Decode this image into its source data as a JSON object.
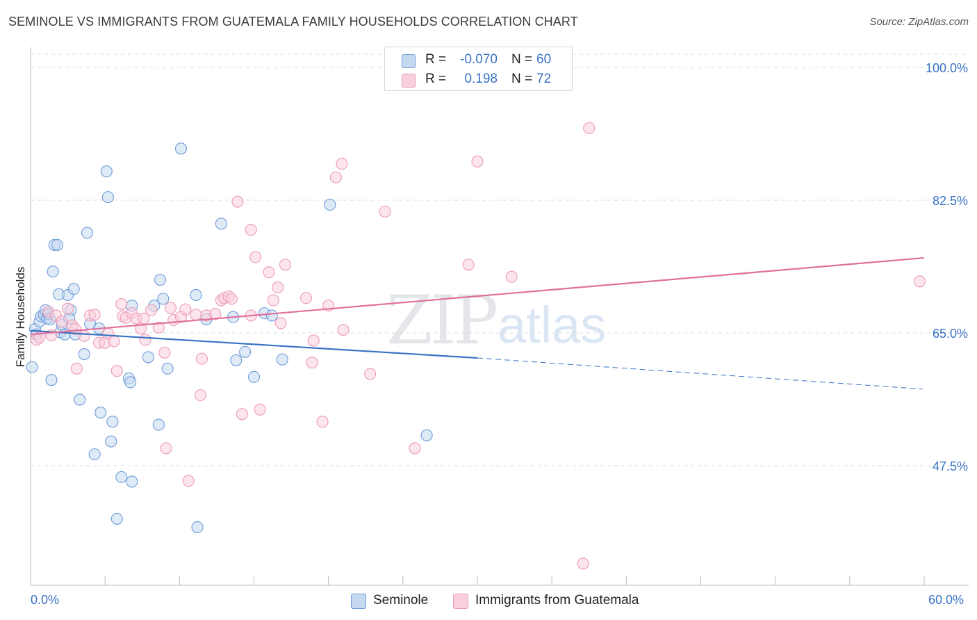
{
  "title": "SEMINOLE VS IMMIGRANTS FROM GUATEMALA FAMILY HOUSEHOLDS CORRELATION CHART",
  "source": "Source: ZipAtlas.com",
  "watermark": {
    "zip": "ZIP",
    "atlas": "atlas"
  },
  "colors": {
    "blue": "#3a72c4",
    "blue_fill": "#c5d9f1",
    "blue_stroke": "#6e9bd9",
    "pink": "#e0709a",
    "pink_fill": "#f9cfdc",
    "pink_stroke": "#ec9bb6",
    "grid": "#dcdcdc"
  },
  "legend_top": {
    "rows": [
      {
        "r_label": "R =",
        "r_value": "-0.070",
        "n_label": "N =",
        "n_value": "60"
      },
      {
        "r_label": "R =",
        "r_value": "0.198",
        "n_label": "N =",
        "n_value": "72"
      }
    ]
  },
  "legend_bottom": {
    "items": [
      "Seminole",
      "Immigrants from Guatemala"
    ]
  },
  "x_labels": {
    "left": "0.0%",
    "right": "60.0%"
  },
  "chart_data": {
    "type": "scatter",
    "title": "SEMINOLE VS IMMIGRANTS FROM GUATEMALA FAMILY HOUSEHOLDS CORRELATION CHART",
    "xlabel": "",
    "ylabel": "Family Households",
    "xlim": [
      0,
      60
    ],
    "ylim": [
      30,
      100
    ],
    "y_ticks": [
      47.5,
      65.0,
      82.5,
      100.0
    ],
    "y_tick_labels": [
      "47.5%",
      "65.0%",
      "82.5%",
      "100.0%"
    ],
    "grid": true,
    "series": [
      {
        "name": "Seminole",
        "color": "blue",
        "trend": {
          "x0": 0,
          "y0": 65.3,
          "x1": 30,
          "y1": 61.7,
          "dash_to": 59.9,
          "dash_y": 57.6
        },
        "points": [
          [
            0.1,
            60.5
          ],
          [
            0.3,
            65.5
          ],
          [
            0.4,
            64.8
          ],
          [
            0.6,
            66.5
          ],
          [
            0.7,
            67.2
          ],
          [
            0.9,
            67.4
          ],
          [
            1.0,
            68.0
          ],
          [
            1.1,
            66.9
          ],
          [
            1.2,
            67.5
          ],
          [
            1.4,
            58.8
          ],
          [
            1.5,
            73.1
          ],
          [
            1.6,
            76.6
          ],
          [
            1.8,
            76.6
          ],
          [
            1.9,
            70.1
          ],
          [
            2.0,
            65.1
          ],
          [
            2.1,
            66.1
          ],
          [
            2.3,
            64.8
          ],
          [
            2.5,
            70.0
          ],
          [
            2.7,
            68.0
          ],
          [
            2.9,
            70.8
          ],
          [
            3.0,
            64.8
          ],
          [
            3.3,
            56.2
          ],
          [
            3.6,
            62.2
          ],
          [
            3.8,
            78.2
          ],
          [
            4.0,
            66.2
          ],
          [
            4.3,
            49.0
          ],
          [
            4.7,
            54.5
          ],
          [
            5.1,
            86.3
          ],
          [
            5.2,
            82.9
          ],
          [
            5.4,
            50.7
          ],
          [
            5.5,
            53.3
          ],
          [
            6.1,
            46.0
          ],
          [
            5.8,
            40.5
          ],
          [
            6.6,
            59.0
          ],
          [
            6.7,
            58.5
          ],
          [
            6.8,
            45.4
          ],
          [
            6.8,
            68.6
          ],
          [
            7.9,
            61.8
          ],
          [
            8.3,
            68.6
          ],
          [
            8.6,
            52.9
          ],
          [
            8.7,
            72.0
          ],
          [
            8.9,
            69.5
          ],
          [
            9.2,
            60.3
          ],
          [
            10.1,
            89.3
          ],
          [
            11.1,
            70.0
          ],
          [
            11.2,
            39.4
          ],
          [
            11.8,
            66.8
          ],
          [
            12.8,
            79.4
          ],
          [
            13.6,
            67.1
          ],
          [
            13.8,
            61.4
          ],
          [
            14.4,
            62.5
          ],
          [
            15.0,
            59.2
          ],
          [
            15.7,
            67.6
          ],
          [
            16.2,
            67.3
          ],
          [
            16.9,
            61.5
          ],
          [
            20.1,
            81.9
          ],
          [
            26.6,
            51.5
          ],
          [
            4.6,
            65.6
          ],
          [
            1.3,
            66.8
          ],
          [
            2.6,
            66.9
          ]
        ]
      },
      {
        "name": "Immigrants from Guatemala",
        "color": "pink",
        "trend": {
          "x0": 0,
          "y0": 64.8,
          "x1": 60,
          "y1": 74.9
        },
        "points": [
          [
            0.4,
            64.1
          ],
          [
            0.6,
            64.4
          ],
          [
            1.2,
            67.8
          ],
          [
            1.4,
            64.7
          ],
          [
            1.7,
            67.3
          ],
          [
            2.1,
            66.5
          ],
          [
            2.5,
            68.2
          ],
          [
            2.8,
            66.0
          ],
          [
            3.0,
            65.5
          ],
          [
            3.1,
            60.3
          ],
          [
            3.6,
            64.6
          ],
          [
            4.0,
            67.3
          ],
          [
            4.3,
            67.4
          ],
          [
            4.6,
            63.7
          ],
          [
            5.0,
            63.7
          ],
          [
            5.2,
            64.9
          ],
          [
            5.6,
            63.9
          ],
          [
            5.8,
            60.0
          ],
          [
            6.1,
            68.8
          ],
          [
            6.2,
            67.2
          ],
          [
            6.4,
            67.0
          ],
          [
            6.8,
            67.6
          ],
          [
            7.1,
            66.9
          ],
          [
            7.4,
            65.6
          ],
          [
            7.6,
            66.9
          ],
          [
            7.7,
            64.1
          ],
          [
            8.1,
            68.0
          ],
          [
            8.6,
            65.7
          ],
          [
            9.0,
            62.4
          ],
          [
            9.1,
            49.8
          ],
          [
            9.4,
            68.3
          ],
          [
            9.6,
            66.7
          ],
          [
            10.1,
            67.1
          ],
          [
            10.4,
            68.1
          ],
          [
            10.6,
            45.5
          ],
          [
            11.1,
            67.4
          ],
          [
            11.4,
            56.8
          ],
          [
            11.5,
            61.6
          ],
          [
            11.8,
            67.3
          ],
          [
            12.4,
            67.5
          ],
          [
            12.8,
            69.3
          ],
          [
            13.0,
            69.6
          ],
          [
            13.3,
            69.8
          ],
          [
            13.5,
            69.5
          ],
          [
            13.9,
            82.3
          ],
          [
            14.2,
            54.3
          ],
          [
            14.8,
            67.3
          ],
          [
            14.8,
            78.6
          ],
          [
            15.1,
            75.0
          ],
          [
            15.4,
            54.9
          ],
          [
            16.0,
            73.0
          ],
          [
            16.3,
            69.3
          ],
          [
            16.6,
            71.0
          ],
          [
            16.8,
            66.3
          ],
          [
            17.1,
            74.0
          ],
          [
            18.5,
            69.6
          ],
          [
            18.9,
            61.1
          ],
          [
            19.0,
            64.0
          ],
          [
            19.6,
            53.3
          ],
          [
            20.0,
            68.6
          ],
          [
            20.5,
            85.5
          ],
          [
            20.9,
            87.3
          ],
          [
            21.0,
            65.4
          ],
          [
            22.8,
            59.6
          ],
          [
            23.8,
            81.0
          ],
          [
            25.8,
            49.8
          ],
          [
            29.4,
            74.0
          ],
          [
            30.0,
            87.6
          ],
          [
            32.3,
            72.4
          ],
          [
            37.5,
            92.0
          ],
          [
            37.1,
            34.6
          ],
          [
            59.7,
            71.8
          ]
        ]
      }
    ]
  }
}
